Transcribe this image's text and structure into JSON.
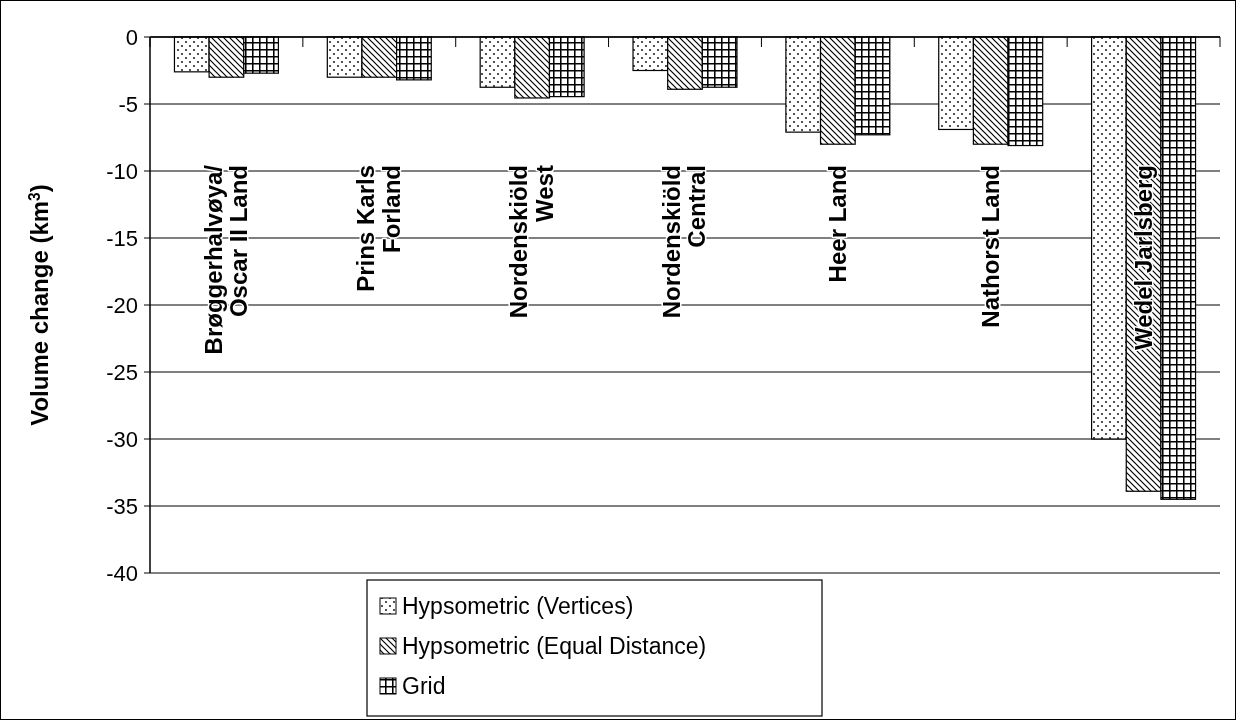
{
  "chart_data": {
    "type": "bar",
    "ylabel": "Volume change (km$^{3}$)",
    "categories": [
      "Brøggerhalvøya/ Oscar II Land",
      "Prins Karls Forland",
      "Nordenskiöld West",
      "Nordenskiöld Central",
      "Heer Land",
      "Nathorst Land",
      "Wedel Jarlsberg"
    ],
    "series": [
      {
        "name": "Hypsometric (Vertices)",
        "color": "#000000",
        "values": [
          -2.6,
          -3.0,
          -3.75,
          -2.5,
          -7.1,
          -6.9,
          -30.0
        ]
      },
      {
        "name": "Hypsometric (Equal Distance)",
        "color": "#000000",
        "values": [
          -3.0,
          -3.0,
          -4.55,
          -3.9,
          -8.0,
          -8.0,
          -33.9
        ]
      },
      {
        "name": "Grid",
        "color": "#000000",
        "values": [
          -2.7,
          -3.2,
          -4.45,
          -3.75,
          -7.3,
          -8.1,
          -34.5
        ]
      }
    ],
    "ylim": [
      -40,
      0
    ],
    "yticks": [
      -40,
      -35,
      -30,
      -25,
      -20,
      -15,
      -10,
      -5,
      0
    ],
    "grid": "y",
    "legend": "bottom"
  }
}
